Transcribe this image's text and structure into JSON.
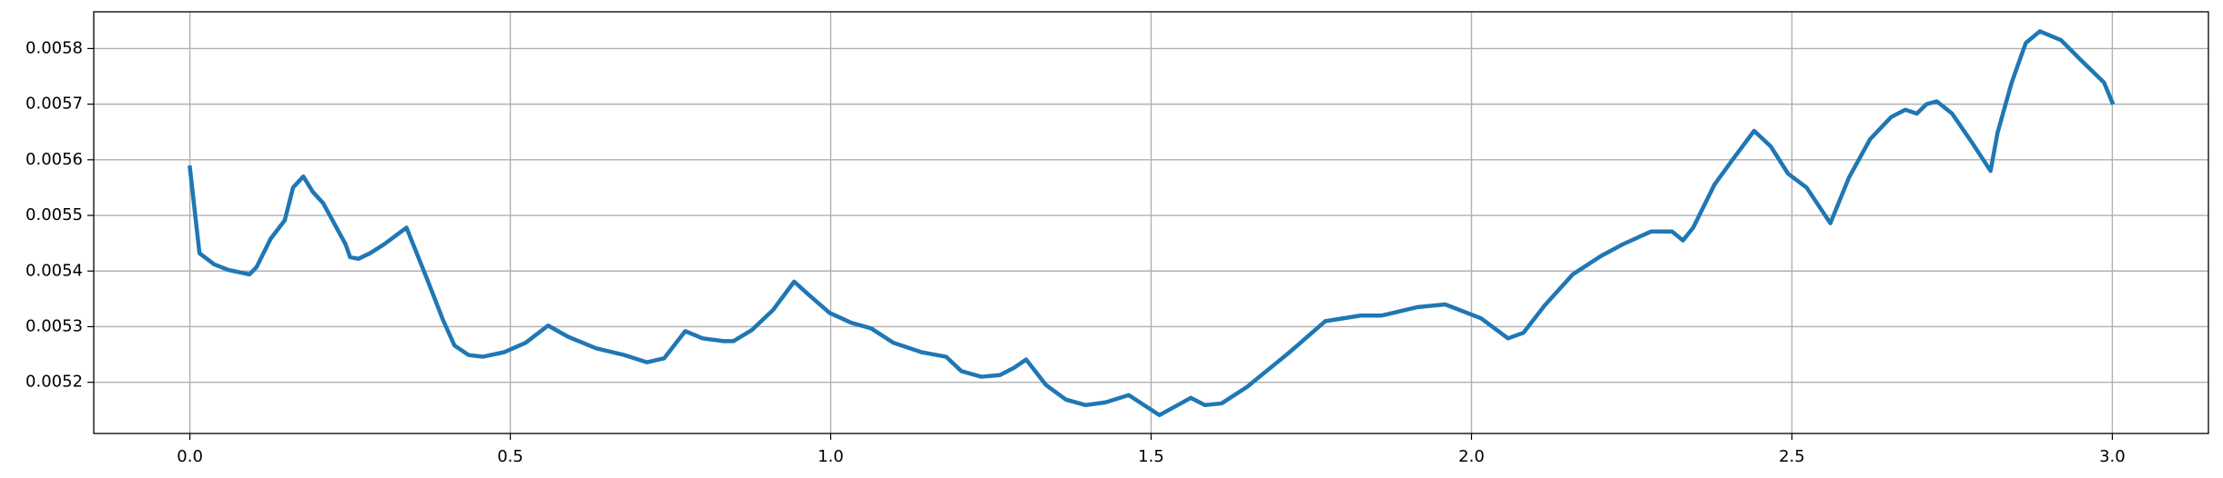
{
  "chart_data": {
    "type": "line",
    "x": [
      0.0,
      0.015,
      0.038,
      0.06,
      0.093,
      0.104,
      0.126,
      0.148,
      0.161,
      0.177,
      0.192,
      0.208,
      0.225,
      0.243,
      0.25,
      0.263,
      0.281,
      0.303,
      0.338,
      0.369,
      0.395,
      0.413,
      0.435,
      0.457,
      0.49,
      0.524,
      0.559,
      0.59,
      0.634,
      0.678,
      0.713,
      0.74,
      0.773,
      0.8,
      0.833,
      0.848,
      0.877,
      0.91,
      0.943,
      0.965,
      0.998,
      1.032,
      1.063,
      1.098,
      1.142,
      1.18,
      1.204,
      1.235,
      1.264,
      1.286,
      1.305,
      1.336,
      1.367,
      1.398,
      1.429,
      1.465,
      1.513,
      1.562,
      1.584,
      1.61,
      1.65,
      1.716,
      1.772,
      1.827,
      1.86,
      1.915,
      1.959,
      2.015,
      2.057,
      2.081,
      2.114,
      2.158,
      2.202,
      2.236,
      2.28,
      2.313,
      2.33,
      2.346,
      2.379,
      2.406,
      2.441,
      2.467,
      2.494,
      2.523,
      2.56,
      2.589,
      2.622,
      2.655,
      2.677,
      2.695,
      2.71,
      2.726,
      2.75,
      2.781,
      2.81,
      2.821,
      2.843,
      2.865,
      2.887,
      2.92,
      2.953,
      2.987,
      3.0
    ],
    "values": [
      0.005586,
      0.005432,
      0.005412,
      0.005402,
      0.005394,
      0.005407,
      0.005458,
      0.005491,
      0.00555,
      0.00557,
      0.005542,
      0.005522,
      0.005486,
      0.005448,
      0.005425,
      0.005422,
      0.005432,
      0.005448,
      0.005478,
      0.005389,
      0.005312,
      0.005266,
      0.005249,
      0.005246,
      0.005254,
      0.005271,
      0.005302,
      0.005282,
      0.005261,
      0.005249,
      0.005236,
      0.005243,
      0.005292,
      0.005279,
      0.005274,
      0.005274,
      0.005294,
      0.00533,
      0.005381,
      0.005358,
      0.005325,
      0.005307,
      0.005297,
      0.005271,
      0.005254,
      0.005246,
      0.00522,
      0.00521,
      0.005213,
      0.005226,
      0.005241,
      0.005195,
      0.005169,
      0.005159,
      0.005164,
      0.005177,
      0.005141,
      0.005172,
      0.005159,
      0.005162,
      0.005192,
      0.005254,
      0.00531,
      0.00532,
      0.00532,
      0.005335,
      0.00534,
      0.005315,
      0.005279,
      0.005289,
      0.005338,
      0.005394,
      0.005427,
      0.005448,
      0.005471,
      0.005471,
      0.005455,
      0.005478,
      0.005555,
      0.005598,
      0.005652,
      0.005624,
      0.005575,
      0.00555,
      0.005486,
      0.005568,
      0.005637,
      0.005677,
      0.00569,
      0.005683,
      0.0057,
      0.005705,
      0.005683,
      0.005631,
      0.00558,
      0.005649,
      0.005739,
      0.00581,
      0.005831,
      0.005815,
      0.005777,
      0.005739,
      0.005703
    ],
    "color": "#1f77b4",
    "xlim": [
      -0.15,
      3.15
    ],
    "xticks": [
      {
        "value": 0,
        "label": "0.0"
      },
      0.5,
      {
        "value": 1,
        "label": "1.0"
      },
      1.5,
      {
        "value": 2,
        "label": "2.0"
      },
      2.5,
      {
        "value": 3,
        "label": "3.0"
      }
    ],
    "ylim": [
      0.005108,
      0.005866
    ],
    "yticks": [
      0.0052,
      0.0053,
      0.0054,
      0.0055,
      0.0056,
      0.0057,
      0.0058
    ],
    "grid": true
  }
}
